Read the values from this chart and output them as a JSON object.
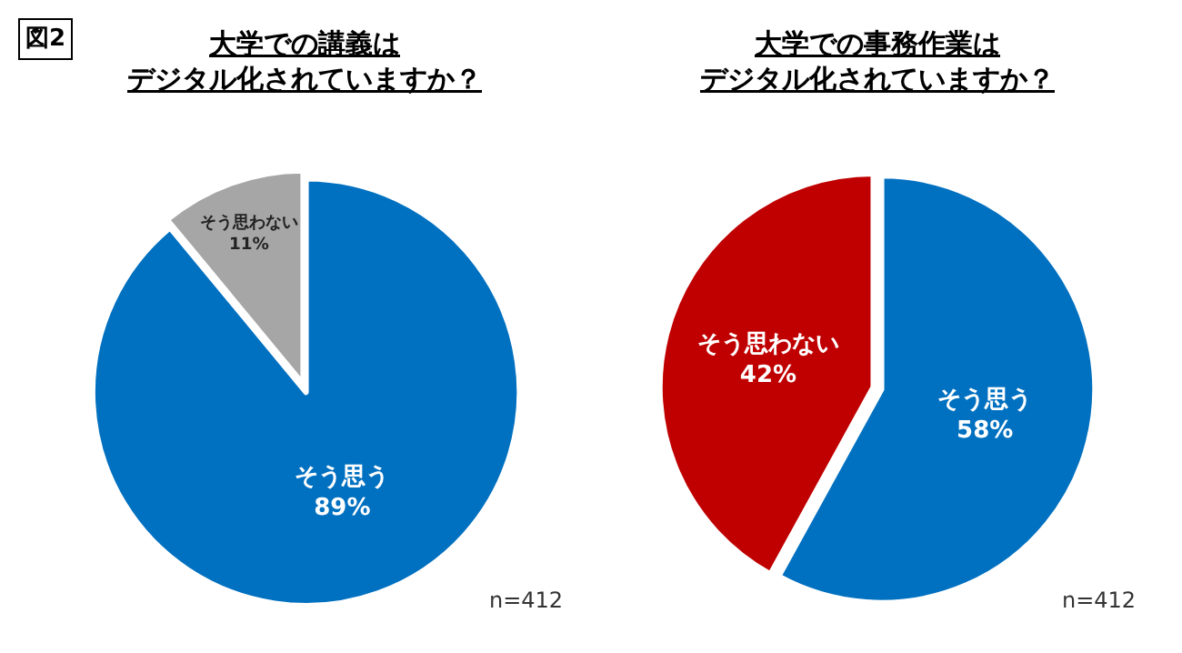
{
  "chart_data": [
    {
      "type": "pie",
      "title": "大学での講義は",
      "subtitle": "デジタル化されていますか？",
      "categories": [
        "そう思う",
        "そう思わない"
      ],
      "values": [
        89,
        11
      ],
      "colors": [
        "#0070c0",
        "#a6a6a6"
      ],
      "value_labels": [
        "89%",
        "11%"
      ],
      "annotations": [
        "図2",
        "n=412"
      ]
    },
    {
      "type": "pie",
      "title": "大学での事務作業は",
      "subtitle": "デジタル化されていますか？",
      "categories": [
        "そう思う",
        "そう思わない"
      ],
      "values": [
        58,
        42
      ],
      "colors": [
        "#0070c0",
        "#c00000"
      ],
      "value_labels": [
        "58%",
        "42%"
      ],
      "annotations": [
        "n=412"
      ]
    }
  ]
}
